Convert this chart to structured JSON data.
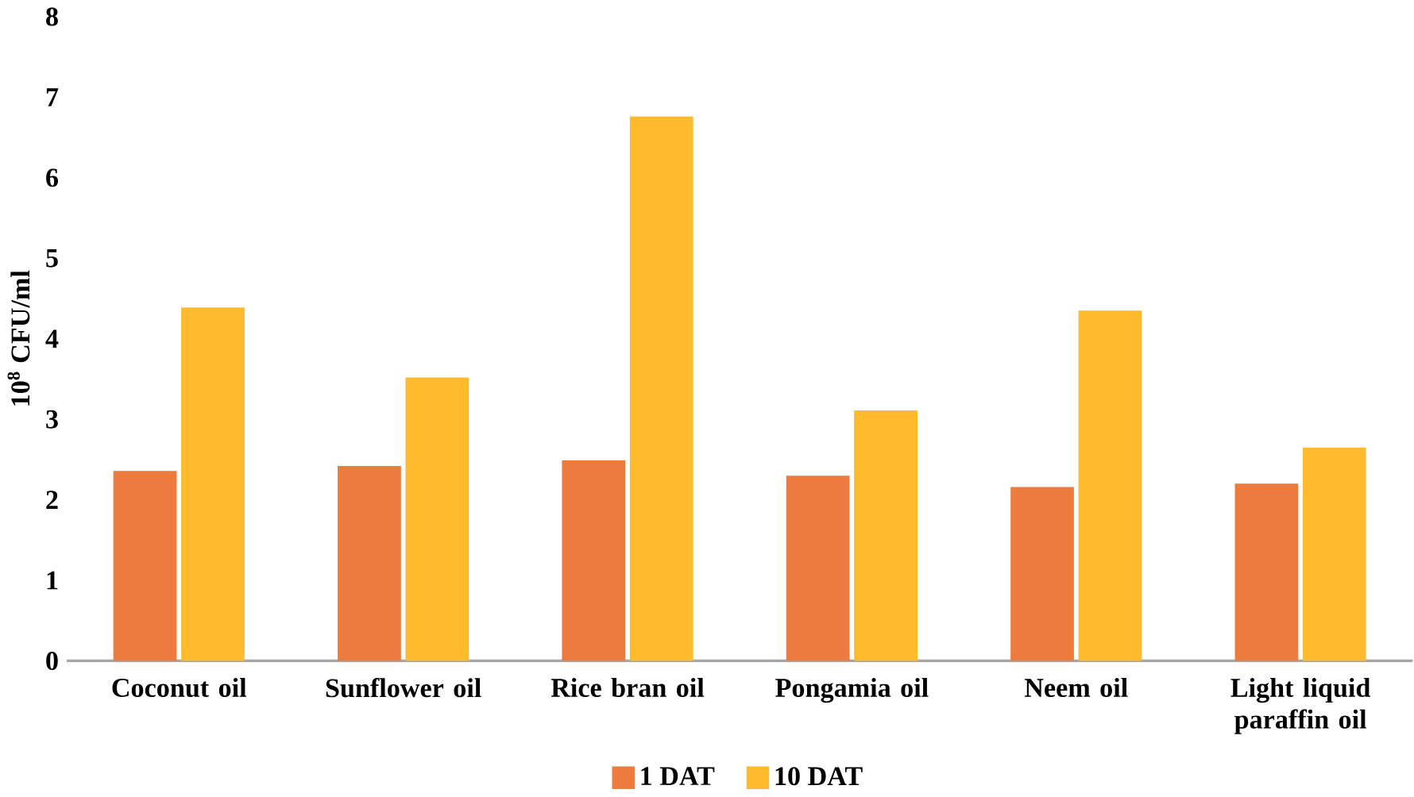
{
  "chart_data": {
    "type": "bar",
    "ylabel": "10$^{8}$ CFU/ml",
    "categories": [
      "Coconut oil",
      "Sunflower oil",
      "Rice bran oil",
      "Pongamia oil",
      "Neem oil",
      "Light liquid paraffin oil"
    ],
    "series": [
      {
        "name": "1 DAT",
        "color": "#ee7b3e",
        "values": [
          2.36,
          2.42,
          2.49,
          2.3,
          2.16,
          2.2
        ]
      },
      {
        "name": "10 DAT",
        "color": "#ffba2e",
        "values": [
          4.39,
          3.52,
          6.76,
          3.11,
          4.35,
          2.65
        ]
      }
    ],
    "ylim": [
      0,
      8
    ],
    "yticks": [
      0,
      1,
      2,
      3,
      4,
      5,
      6,
      7,
      8
    ],
    "grid": false,
    "legend": "bottom"
  }
}
